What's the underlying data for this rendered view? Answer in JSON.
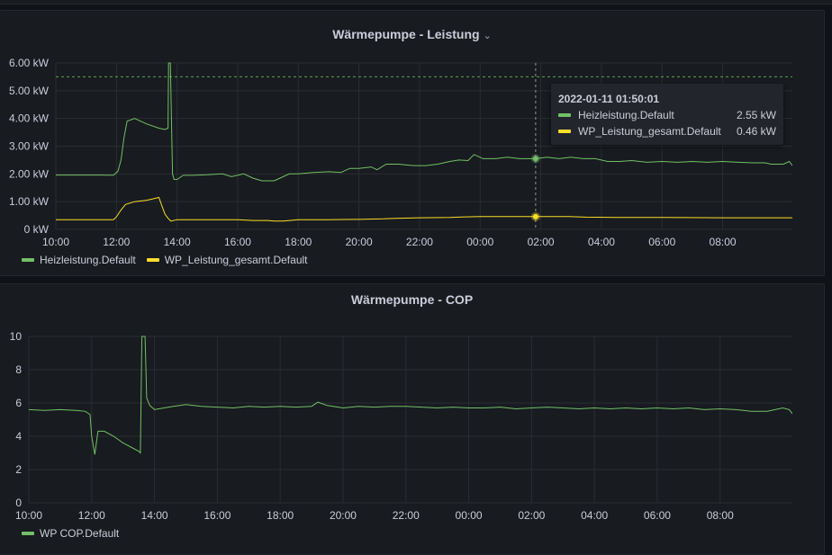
{
  "colors": {
    "green": "#73bf69",
    "yellow": "#fade2a"
  },
  "panel1": {
    "title": "Wärmepumpe - Leistung",
    "chevron": "⌄",
    "legend": [
      "Heizleistung.Default",
      "WP_Leistung_gesamt.Default"
    ],
    "tooltip": {
      "time": "2022-01-11 01:50:01",
      "rows": [
        {
          "name": "Heizleistung.Default",
          "value": "2.55 kW"
        },
        {
          "name": "WP_Leistung_gesamt.Default",
          "value": "0.46 kW"
        }
      ]
    }
  },
  "panel2": {
    "title": "Wärmepumpe - COP",
    "legend": [
      "WP COP.Default"
    ]
  },
  "chart_data": [
    {
      "type": "line",
      "title": "Wärmepumpe - Leistung",
      "x_unit": "hours since 10:00",
      "xlim": [
        0,
        24.3
      ],
      "x_ticks": [
        "10:00",
        "12:00",
        "14:00",
        "16:00",
        "18:00",
        "20:00",
        "22:00",
        "00:00",
        "02:00",
        "04:00",
        "06:00",
        "08:00"
      ],
      "ylim": [
        0,
        6
      ],
      "y_ticks": [
        "0 kW",
        "1.00 kW",
        "2.00 kW",
        "3.00 kW",
        "4.00 kW",
        "5.00 kW",
        "6.00 kW"
      ],
      "threshold": 5.5,
      "cursor_x": 15.83,
      "series": [
        {
          "name": "Heizleistung.Default",
          "points": [
            [
              0,
              1.96
            ],
            [
              1.5,
              1.96
            ],
            [
              1.9,
              1.95
            ],
            [
              2.05,
              2.1
            ],
            [
              2.15,
              2.5
            ],
            [
              2.25,
              3.3
            ],
            [
              2.35,
              3.9
            ],
            [
              2.6,
              4.0
            ],
            [
              3.0,
              3.8
            ],
            [
              3.4,
              3.65
            ],
            [
              3.6,
              3.6
            ],
            [
              3.7,
              3.65
            ],
            [
              3.72,
              6.0
            ],
            [
              3.78,
              6.0
            ],
            [
              3.85,
              2.0
            ],
            [
              3.9,
              1.8
            ],
            [
              4.0,
              1.8
            ],
            [
              4.2,
              1.95
            ],
            [
              4.5,
              1.95
            ],
            [
              5.0,
              1.97
            ],
            [
              5.5,
              2.0
            ],
            [
              5.8,
              1.9
            ],
            [
              6.2,
              2.0
            ],
            [
              6.5,
              1.85
            ],
            [
              6.8,
              1.75
            ],
            [
              7.2,
              1.75
            ],
            [
              7.4,
              1.85
            ],
            [
              7.7,
              2.0
            ],
            [
              8.0,
              2.0
            ],
            [
              8.5,
              2.05
            ],
            [
              9.0,
              2.08
            ],
            [
              9.4,
              2.05
            ],
            [
              9.7,
              2.2
            ],
            [
              10.0,
              2.2
            ],
            [
              10.4,
              2.25
            ],
            [
              10.6,
              2.15
            ],
            [
              10.9,
              2.35
            ],
            [
              11.3,
              2.35
            ],
            [
              11.8,
              2.3
            ],
            [
              12.2,
              2.3
            ],
            [
              12.6,
              2.35
            ],
            [
              13.0,
              2.45
            ],
            [
              13.3,
              2.5
            ],
            [
              13.6,
              2.48
            ],
            [
              13.8,
              2.7
            ],
            [
              14.1,
              2.55
            ],
            [
              14.5,
              2.55
            ],
            [
              14.9,
              2.6
            ],
            [
              15.3,
              2.55
            ],
            [
              15.83,
              2.55
            ],
            [
              16.2,
              2.6
            ],
            [
              16.6,
              2.55
            ],
            [
              17.0,
              2.6
            ],
            [
              17.4,
              2.55
            ],
            [
              17.8,
              2.55
            ],
            [
              18.2,
              2.45
            ],
            [
              18.6,
              2.45
            ],
            [
              19.0,
              2.48
            ],
            [
              19.5,
              2.42
            ],
            [
              20.0,
              2.45
            ],
            [
              20.5,
              2.42
            ],
            [
              21.0,
              2.45
            ],
            [
              21.5,
              2.42
            ],
            [
              22.0,
              2.45
            ],
            [
              22.5,
              2.42
            ],
            [
              23.0,
              2.4
            ],
            [
              23.4,
              2.4
            ],
            [
              23.6,
              2.35
            ],
            [
              24.0,
              2.35
            ],
            [
              24.2,
              2.45
            ],
            [
              24.3,
              2.3
            ]
          ]
        },
        {
          "name": "WP_Leistung_gesamt.Default",
          "points": [
            [
              0,
              0.35
            ],
            [
              1.9,
              0.35
            ],
            [
              2.0,
              0.45
            ],
            [
              2.15,
              0.7
            ],
            [
              2.3,
              0.9
            ],
            [
              2.6,
              1.0
            ],
            [
              3.0,
              1.05
            ],
            [
              3.2,
              1.1
            ],
            [
              3.4,
              1.15
            ],
            [
              3.5,
              0.85
            ],
            [
              3.6,
              0.55
            ],
            [
              3.7,
              0.4
            ],
            [
              3.8,
              0.3
            ],
            [
              4.0,
              0.35
            ],
            [
              5.0,
              0.35
            ],
            [
              6.0,
              0.35
            ],
            [
              6.5,
              0.32
            ],
            [
              7.0,
              0.32
            ],
            [
              7.2,
              0.3
            ],
            [
              7.5,
              0.3
            ],
            [
              8.0,
              0.35
            ],
            [
              9.0,
              0.35
            ],
            [
              10.0,
              0.36
            ],
            [
              10.8,
              0.38
            ],
            [
              11.2,
              0.4
            ],
            [
              12.0,
              0.42
            ],
            [
              13.0,
              0.43
            ],
            [
              13.5,
              0.45
            ],
            [
              14.0,
              0.46
            ],
            [
              15.83,
              0.46
            ],
            [
              17.0,
              0.46
            ],
            [
              17.5,
              0.44
            ],
            [
              18.5,
              0.43
            ],
            [
              20.0,
              0.43
            ],
            [
              22.0,
              0.42
            ],
            [
              24.3,
              0.42
            ]
          ]
        }
      ]
    },
    {
      "type": "line",
      "title": "Wärmepumpe - COP",
      "x_unit": "hours since 10:00",
      "xlim": [
        0,
        24.3
      ],
      "x_ticks": [
        "10:00",
        "12:00",
        "14:00",
        "16:00",
        "18:00",
        "20:00",
        "22:00",
        "00:00",
        "02:00",
        "04:00",
        "06:00",
        "08:00"
      ],
      "ylim": [
        0,
        10
      ],
      "y_ticks": [
        "0",
        "2",
        "4",
        "6",
        "8",
        "10"
      ],
      "series": [
        {
          "name": "WP COP.Default",
          "points": [
            [
              0,
              5.6
            ],
            [
              0.5,
              5.55
            ],
            [
              1.0,
              5.6
            ],
            [
              1.5,
              5.55
            ],
            [
              1.8,
              5.5
            ],
            [
              1.95,
              5.3
            ],
            [
              2.0,
              4.0
            ],
            [
              2.1,
              2.9
            ],
            [
              2.2,
              4.3
            ],
            [
              2.4,
              4.3
            ],
            [
              2.7,
              4.0
            ],
            [
              3.0,
              3.6
            ],
            [
              3.3,
              3.3
            ],
            [
              3.5,
              3.1
            ],
            [
              3.55,
              3.0
            ],
            [
              3.6,
              10.0
            ],
            [
              3.7,
              10.0
            ],
            [
              3.75,
              6.3
            ],
            [
              3.85,
              5.85
            ],
            [
              4.0,
              5.6
            ],
            [
              4.3,
              5.7
            ],
            [
              4.6,
              5.8
            ],
            [
              5.0,
              5.9
            ],
            [
              5.5,
              5.8
            ],
            [
              6.0,
              5.75
            ],
            [
              6.5,
              5.7
            ],
            [
              7.0,
              5.8
            ],
            [
              7.5,
              5.75
            ],
            [
              8.0,
              5.8
            ],
            [
              8.5,
              5.75
            ],
            [
              9.0,
              5.8
            ],
            [
              9.2,
              6.05
            ],
            [
              9.5,
              5.85
            ],
            [
              10.0,
              5.7
            ],
            [
              10.5,
              5.8
            ],
            [
              11.0,
              5.75
            ],
            [
              11.5,
              5.8
            ],
            [
              12.0,
              5.8
            ],
            [
              12.5,
              5.75
            ],
            [
              13.0,
              5.7
            ],
            [
              13.5,
              5.75
            ],
            [
              14.0,
              5.7
            ],
            [
              14.5,
              5.7
            ],
            [
              15.0,
              5.75
            ],
            [
              15.5,
              5.65
            ],
            [
              16.0,
              5.7
            ],
            [
              16.5,
              5.75
            ],
            [
              17.0,
              5.7
            ],
            [
              17.5,
              5.65
            ],
            [
              18.0,
              5.7
            ],
            [
              18.5,
              5.65
            ],
            [
              19.0,
              5.7
            ],
            [
              19.5,
              5.65
            ],
            [
              20.0,
              5.7
            ],
            [
              20.5,
              5.65
            ],
            [
              21.0,
              5.7
            ],
            [
              21.5,
              5.6
            ],
            [
              22.0,
              5.65
            ],
            [
              22.5,
              5.6
            ],
            [
              23.0,
              5.5
            ],
            [
              23.5,
              5.5
            ],
            [
              24.0,
              5.7
            ],
            [
              24.2,
              5.6
            ],
            [
              24.3,
              5.35
            ]
          ]
        }
      ]
    }
  ]
}
